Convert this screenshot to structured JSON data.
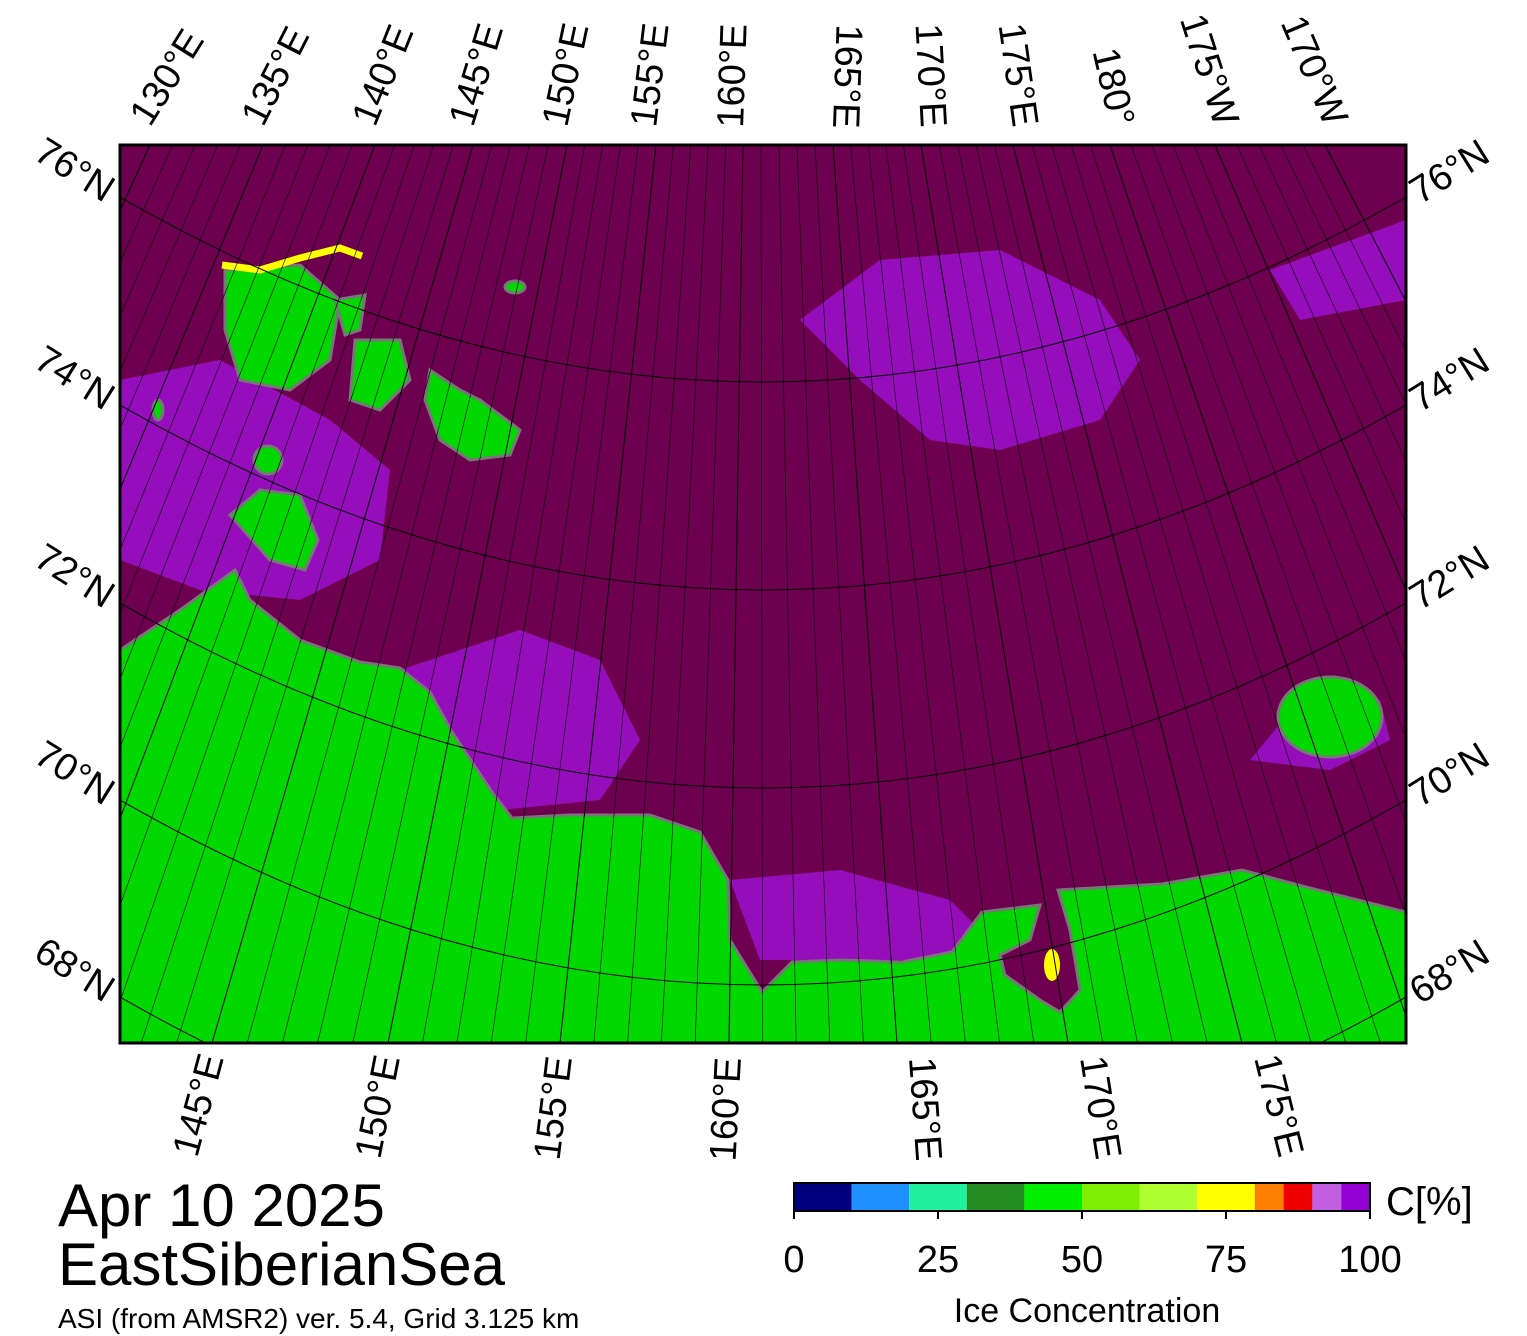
{
  "map": {
    "top_labels": [
      "130°E",
      "135°E",
      "140°E",
      "145°E",
      "150°E",
      "155°E",
      "160°E",
      "165°E",
      "170°E",
      "175°E",
      "180°",
      "175°W",
      "170°W"
    ],
    "bottom_labels": [
      "145°E",
      "150°E",
      "155°E",
      "160°E",
      "165°E",
      "170°E",
      "175°E"
    ],
    "left_labels": [
      "76°N",
      "74°N",
      "72°N",
      "70°N",
      "68°N"
    ],
    "right_labels": [
      "76°N",
      "74°N",
      "72°N",
      "70°N",
      "68°N"
    ]
  },
  "title": {
    "date": "Apr 10 2025",
    "region": "EastSiberianSea",
    "source": "ASI (from AMSR2) ver. 5.4,  Grid 3.125 km"
  },
  "colorbar": {
    "label": "Ice Concentration",
    "unit": "C[%]",
    "lim": [
      0,
      100
    ],
    "ticks": [
      0,
      25,
      50,
      75,
      100
    ],
    "bounds": [
      0,
      10,
      20,
      30,
      40,
      50,
      60,
      70,
      80,
      85,
      90,
      95,
      100
    ],
    "colors": [
      "#000080",
      "#1e90ff",
      "#20f0a0",
      "#228b22",
      "#00ee00",
      "#7fee00",
      "#adff2f",
      "#ffff00",
      "#ff8000",
      "#ee0000",
      "#c060e0",
      "#9400d3"
    ]
  }
}
